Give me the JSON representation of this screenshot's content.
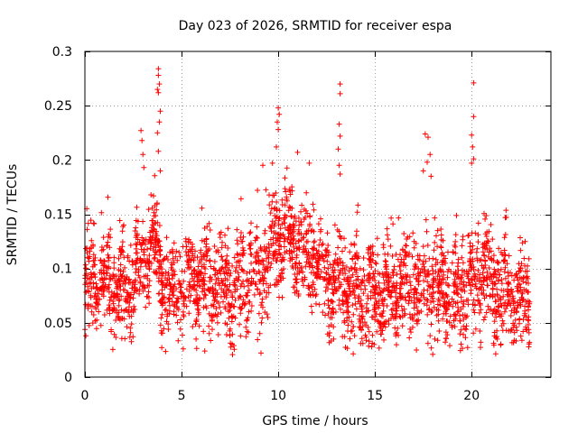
{
  "chart_data": {
    "type": "scatter",
    "title": "Day 023 of 2026, SRMTID for receiver espa",
    "xlabel": "GPS time / hours",
    "ylabel": "SRMTID / TECUs",
    "xlim": [
      0,
      24.1
    ],
    "ylim": [
      0,
      0.3
    ],
    "xticks": [
      0,
      5,
      10,
      15,
      20
    ],
    "yticks": [
      0,
      0.05,
      0.1,
      0.15,
      0.2,
      0.25,
      0.3
    ],
    "xtick_labels": [
      "0",
      "5",
      "10",
      "15",
      "20"
    ],
    "ytick_labels": [
      "0",
      "0.05",
      "0.1",
      "0.15",
      "0.2",
      "0.25",
      "0.3"
    ],
    "grid": true,
    "marker": "+",
    "color": "#ff0000",
    "series_name": "espa",
    "seed": 23,
    "points_per_hour": 120,
    "x_range": [
      0.0,
      23.0
    ],
    "baseline_profile": [
      [
        0.0,
        0.08
      ],
      [
        0.5,
        0.095
      ],
      [
        1.0,
        0.092
      ],
      [
        1.5,
        0.085
      ],
      [
        2.0,
        0.075
      ],
      [
        2.5,
        0.09
      ],
      [
        3.0,
        0.105
      ],
      [
        3.5,
        0.13
      ],
      [
        4.0,
        0.085
      ],
      [
        4.5,
        0.075
      ],
      [
        5.0,
        0.095
      ],
      [
        6.0,
        0.095
      ],
      [
        6.5,
        0.085
      ],
      [
        7.0,
        0.09
      ],
      [
        7.5,
        0.08
      ],
      [
        8.0,
        0.085
      ],
      [
        8.5,
        0.09
      ],
      [
        9.0,
        0.1
      ],
      [
        9.5,
        0.11
      ],
      [
        10.0,
        0.125
      ],
      [
        10.5,
        0.13
      ],
      [
        11.0,
        0.115
      ],
      [
        11.5,
        0.11
      ],
      [
        12.0,
        0.11
      ],
      [
        12.5,
        0.09
      ],
      [
        13.0,
        0.085
      ],
      [
        14.0,
        0.08
      ],
      [
        15.0,
        0.075
      ],
      [
        16.0,
        0.08
      ],
      [
        17.0,
        0.09
      ],
      [
        18.0,
        0.085
      ],
      [
        19.0,
        0.075
      ],
      [
        20.0,
        0.085
      ],
      [
        20.5,
        0.095
      ],
      [
        21.0,
        0.085
      ],
      [
        22.0,
        0.075
      ],
      [
        23.0,
        0.07
      ]
    ],
    "spikes": [
      {
        "x": 3.8,
        "y": 0.284
      },
      {
        "x": 3.8,
        "y": 0.278
      },
      {
        "x": 3.85,
        "y": 0.27
      },
      {
        "x": 3.75,
        "y": 0.265
      },
      {
        "x": 3.8,
        "y": 0.262
      },
      {
        "x": 3.9,
        "y": 0.245
      },
      {
        "x": 3.85,
        "y": 0.235
      },
      {
        "x": 3.75,
        "y": 0.225
      },
      {
        "x": 3.8,
        "y": 0.208
      },
      {
        "x": 3.9,
        "y": 0.19
      },
      {
        "x": 2.9,
        "y": 0.227
      },
      {
        "x": 2.95,
        "y": 0.218
      },
      {
        "x": 3.0,
        "y": 0.205
      },
      {
        "x": 3.05,
        "y": 0.193
      },
      {
        "x": 10.0,
        "y": 0.248
      },
      {
        "x": 10.05,
        "y": 0.242
      },
      {
        "x": 9.95,
        "y": 0.235
      },
      {
        "x": 10.0,
        "y": 0.228
      },
      {
        "x": 9.9,
        "y": 0.212
      },
      {
        "x": 9.7,
        "y": 0.197
      },
      {
        "x": 11.0,
        "y": 0.207
      },
      {
        "x": 11.6,
        "y": 0.197
      },
      {
        "x": 9.2,
        "y": 0.195
      },
      {
        "x": 13.2,
        "y": 0.27
      },
      {
        "x": 13.2,
        "y": 0.261
      },
      {
        "x": 13.15,
        "y": 0.233
      },
      {
        "x": 13.2,
        "y": 0.222
      },
      {
        "x": 13.1,
        "y": 0.21
      },
      {
        "x": 13.15,
        "y": 0.195
      },
      {
        "x": 13.2,
        "y": 0.187
      },
      {
        "x": 17.6,
        "y": 0.224
      },
      {
        "x": 17.75,
        "y": 0.221
      },
      {
        "x": 17.85,
        "y": 0.205
      },
      {
        "x": 17.7,
        "y": 0.198
      },
      {
        "x": 17.5,
        "y": 0.19
      },
      {
        "x": 17.9,
        "y": 0.185
      },
      {
        "x": 20.1,
        "y": 0.271
      },
      {
        "x": 20.1,
        "y": 0.24
      },
      {
        "x": 20.0,
        "y": 0.223
      },
      {
        "x": 20.05,
        "y": 0.212
      },
      {
        "x": 20.1,
        "y": 0.201
      },
      {
        "x": 20.0,
        "y": 0.197
      },
      {
        "x": 6.2,
        "y": 0.024
      },
      {
        "x": 7.7,
        "y": 0.029
      },
      {
        "x": 0.05,
        "y": 0.038
      },
      {
        "x": 14.7,
        "y": 0.033
      },
      {
        "x": 18.1,
        "y": 0.035
      }
    ]
  }
}
